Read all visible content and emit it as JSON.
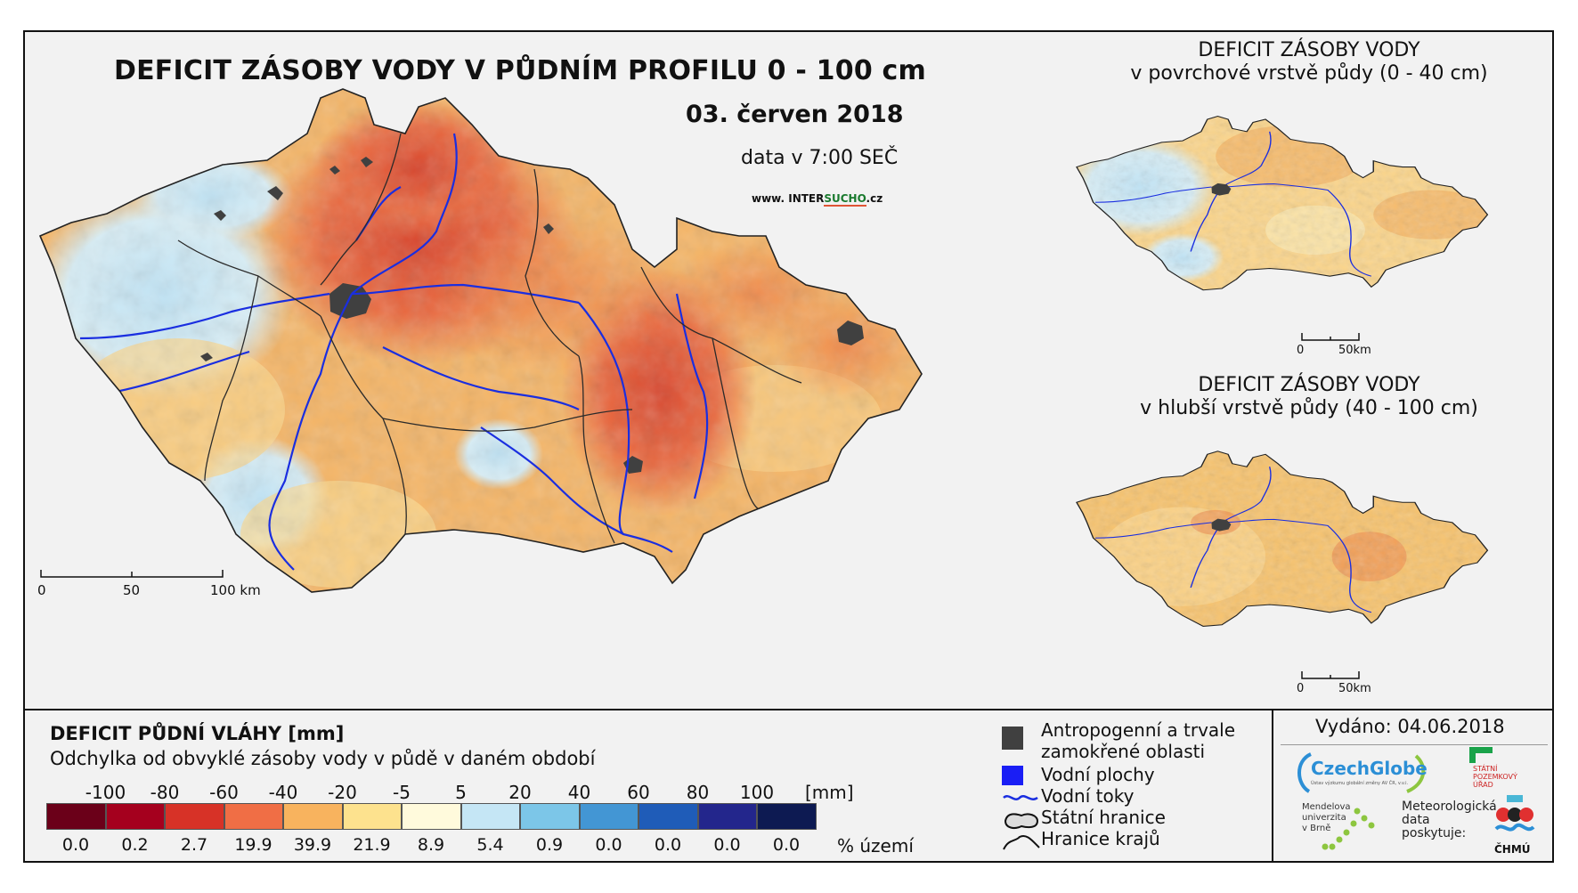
{
  "map": {
    "title": "DEFICIT ZÁSOBY VODY V PŮDNÍM PROFILU 0 - 100 cm",
    "date": "03. červen 2018",
    "time": "data v 7:00 SEČ",
    "web_prefix": "www. INTER",
    "web_accent": "SUCHO",
    "web_suffix": ".cz",
    "scale_main": [
      "0",
      "50",
      "100 km"
    ],
    "inset_surface": {
      "title": "DEFICIT ZÁSOBY VODY",
      "subtitle": "v povrchové vrstvě půdy (0 - 40 cm)",
      "scale": [
        "0",
        "50km"
      ]
    },
    "inset_deep": {
      "title": "DEFICIT ZÁSOBY VODY",
      "subtitle": "v hlubší vrstvě půdy (40 - 100 cm)",
      "scale": [
        "0",
        "50km"
      ]
    },
    "colors": {
      "border": "#2a2a2a",
      "river": "#1a2ee0",
      "urban": "#404040",
      "dry_strong": "#e05535",
      "dry": "#f5b261",
      "neutral": "#fde49a",
      "wet": "#bfe3f5"
    }
  },
  "legend": {
    "title": "DEFICIT PŮDNÍ VLÁHY [mm]",
    "subtitle": "Odchylka od obvyklé zásoby vody v půdě v daném období",
    "ticks": [
      "-100",
      "-80",
      "-60",
      "-40",
      "-20",
      "-5",
      "5",
      "20",
      "40",
      "60",
      "80",
      "100"
    ],
    "unit": "[mm]",
    "classes": [
      {
        "color": "#6b0019",
        "pct": "0.0"
      },
      {
        "color": "#a5001e",
        "pct": "0.2"
      },
      {
        "color": "#d73227",
        "pct": "2.7"
      },
      {
        "color": "#f06e45",
        "pct": "19.9"
      },
      {
        "color": "#f8b35e",
        "pct": "39.9"
      },
      {
        "color": "#fde28e",
        "pct": "21.9"
      },
      {
        "color": "#fffadc",
        "pct": "8.9"
      },
      {
        "color": "#c5e6f5",
        "pct": "5.4"
      },
      {
        "color": "#7cc6e8",
        "pct": "0.9"
      },
      {
        "color": "#4396d4",
        "pct": "0.0"
      },
      {
        "color": "#1f5cb8",
        "pct": "0.0"
      },
      {
        "color": "#23268c",
        "pct": "0.0"
      },
      {
        "color": "#0d1a52",
        "pct": "0.0"
      }
    ],
    "pct_unit": "% území"
  },
  "symbols": {
    "urban": "Antropogenní a trvale zamokřené oblasti",
    "urban_1": "Antropogenní a trvale",
    "urban_2": "zamokřené oblasti",
    "water": "Vodní plochy",
    "rivers": "Vodní toky",
    "state": "Státní hranice",
    "regions": "Hranice krajů"
  },
  "issue": {
    "issued": "Vydáno: 04.06.2018",
    "czechglobe": "CzechGlobe",
    "czechglobe_sub": "Ústav výzkumu globální změny AV ČR, v.v.i.",
    "spu_1": "STÁTNÍ",
    "spu_2": "POZEMKOVÝ",
    "spu_3": "ÚŘAD",
    "mendel_1": "Mendelova",
    "mendel_2": "univerzita",
    "mendel_3": "v Brně",
    "meteo_1": "Meteorologická",
    "meteo_2": "data",
    "meteo_3": "poskytuje:",
    "chmu": "ČHMÚ"
  }
}
